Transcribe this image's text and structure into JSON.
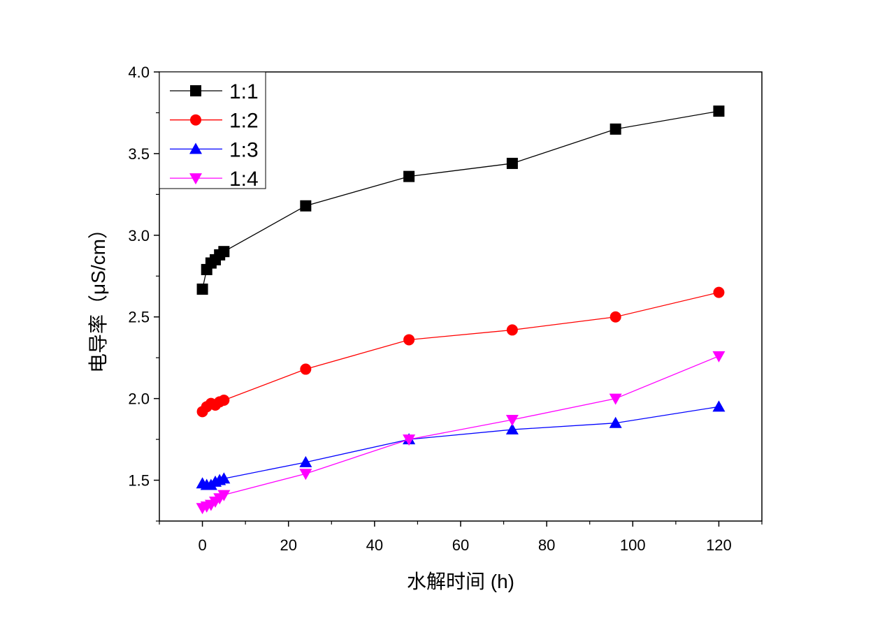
{
  "chart_data": {
    "type": "line",
    "title": "",
    "xlabel": "水解时间 (h)",
    "ylabel": "电导率（μS/cm）",
    "xlim": [
      -10,
      130
    ],
    "ylim": [
      1.25,
      4.0
    ],
    "xticks": [
      0,
      20,
      40,
      60,
      80,
      100,
      120
    ],
    "yticks": [
      1.5,
      2.0,
      2.5,
      3.0,
      3.5,
      4.0
    ],
    "xtick_labels": [
      "0",
      "20",
      "40",
      "60",
      "80",
      "100",
      "120"
    ],
    "ytick_labels": [
      "1.5",
      "2.0",
      "2.5",
      "3.0",
      "3.5",
      "4.0"
    ],
    "grid": false,
    "legend_position": "top-left",
    "x": [
      0,
      1,
      2,
      3,
      4,
      5,
      24,
      48,
      72,
      96,
      120
    ],
    "series": [
      {
        "name": "1:1",
        "color": "#000000",
        "marker": "square",
        "values": [
          2.67,
          2.79,
          2.83,
          2.85,
          2.88,
          2.9,
          3.18,
          3.36,
          3.44,
          3.65,
          3.76
        ]
      },
      {
        "name": "1:2",
        "color": "#ff0000",
        "marker": "circle",
        "values": [
          1.92,
          1.95,
          1.97,
          1.96,
          1.98,
          1.99,
          2.18,
          2.36,
          2.42,
          2.5,
          2.65
        ]
      },
      {
        "name": "1:3",
        "color": "#0000ff",
        "marker": "triangle-up",
        "values": [
          1.48,
          1.47,
          1.47,
          1.49,
          1.5,
          1.51,
          1.61,
          1.75,
          1.81,
          1.85,
          1.95
        ]
      },
      {
        "name": "1:4",
        "color": "#ff00ff",
        "marker": "triangle-down",
        "values": [
          1.33,
          1.34,
          1.35,
          1.37,
          1.39,
          1.41,
          1.54,
          1.75,
          1.87,
          2.0,
          2.26
        ]
      }
    ]
  }
}
